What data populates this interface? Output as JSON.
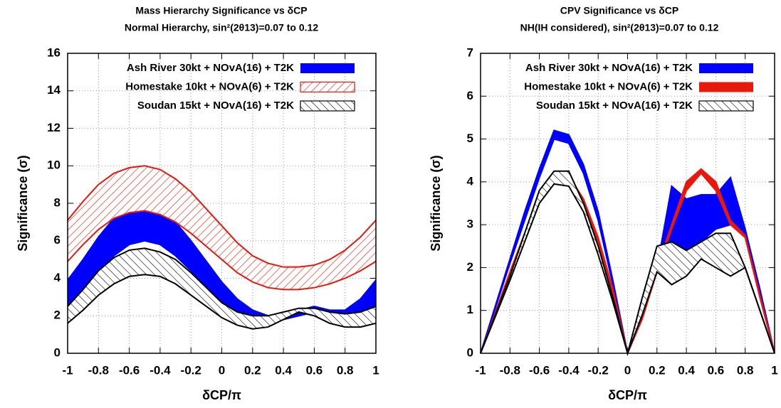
{
  "chart_data": [
    {
      "type": "band",
      "title": "Mass Hierarchy Significance vs δCP",
      "subtitle": "Normal Hierarchy, sin²(2θ13)=0.07 to 0.12",
      "x_label": "δCP/π",
      "y_label": "Significance (σ)",
      "xlim": [
        -1,
        1
      ],
      "xticks": [
        -1,
        -0.8,
        -0.6,
        -0.4,
        -0.2,
        0,
        0.2,
        0.4,
        0.6,
        0.8,
        1
      ],
      "ylim": [
        0,
        16
      ],
      "yticks": [
        0,
        2,
        4,
        6,
        8,
        10,
        12,
        14,
        16
      ],
      "grid": true,
      "legend": "top",
      "x": [
        -1,
        -0.9,
        -0.8,
        -0.7,
        -0.6,
        -0.5,
        -0.4,
        -0.3,
        -0.2,
        -0.1,
        0,
        0.1,
        0.2,
        0.3,
        0.4,
        0.5,
        0.6,
        0.7,
        0.8,
        0.9,
        1
      ],
      "series": [
        {
          "name": "Ash River 30kt + NOvA(16) + T2K",
          "color": "#0000ff",
          "pattern": "solid",
          "lower": [
            2.4,
            3.3,
            4.3,
            5.2,
            5.8,
            6.0,
            5.8,
            5.2,
            4.4,
            3.5,
            2.7,
            2.1,
            1.8,
            1.7,
            1.8,
            2.0,
            2.2,
            2.0,
            1.8,
            1.9,
            2.4
          ],
          "upper": [
            3.9,
            5.0,
            6.2,
            7.2,
            7.9,
            8.1,
            7.8,
            7.0,
            6.0,
            4.9,
            3.8,
            2.9,
            2.3,
            2.0,
            2.1,
            2.3,
            2.5,
            2.3,
            2.3,
            2.9,
            3.9
          ]
        },
        {
          "name": "Homestake 10kt + NOvA(6) + T2K",
          "color": "#e8180c",
          "pattern": "hatch-forward",
          "lower": [
            4.9,
            5.8,
            6.6,
            7.2,
            7.5,
            7.6,
            7.4,
            7.0,
            6.4,
            5.7,
            5.0,
            4.3,
            3.8,
            3.5,
            3.4,
            3.4,
            3.5,
            3.7,
            4.0,
            4.4,
            4.9
          ],
          "upper": [
            7.1,
            8.1,
            9.0,
            9.6,
            9.9,
            10.0,
            9.8,
            9.3,
            8.6,
            7.7,
            6.8,
            5.9,
            5.2,
            4.8,
            4.6,
            4.6,
            4.7,
            5.0,
            5.5,
            6.2,
            7.1
          ]
        },
        {
          "name": "Soudan 15kt + NOvA(16) + T2K",
          "color": "#000000",
          "pattern": "hatch-back",
          "lower": [
            1.6,
            2.3,
            3.1,
            3.7,
            4.1,
            4.2,
            4.1,
            3.7,
            3.1,
            2.5,
            1.9,
            1.5,
            1.3,
            1.4,
            1.8,
            2.2,
            2.0,
            1.6,
            1.4,
            1.4,
            1.6
          ],
          "upper": [
            2.5,
            3.4,
            4.4,
            5.1,
            5.5,
            5.6,
            5.4,
            5.0,
            4.3,
            3.5,
            2.7,
            2.2,
            2.0,
            2.0,
            2.2,
            2.4,
            2.4,
            2.2,
            2.1,
            2.2,
            2.5
          ]
        }
      ]
    },
    {
      "type": "band",
      "title": "CPV Significance vs δCP",
      "subtitle": "NH(IH considered), sin²(2θ13)=0.07 to 0.12",
      "x_label": "δCP/π",
      "y_label": "Significance (σ)",
      "xlim": [
        -1,
        1
      ],
      "xticks": [
        -1,
        -0.8,
        -0.6,
        -0.4,
        -0.2,
        0,
        0.2,
        0.4,
        0.6,
        0.8,
        1
      ],
      "ylim": [
        0,
        7
      ],
      "yticks": [
        0,
        1,
        2,
        3,
        4,
        5,
        6,
        7
      ],
      "grid": true,
      "legend": "top",
      "x": [
        -1,
        -0.9,
        -0.8,
        -0.7,
        -0.6,
        -0.5,
        -0.4,
        -0.3,
        -0.2,
        -0.1,
        0,
        0.1,
        0.2,
        0.3,
        0.4,
        0.5,
        0.6,
        0.7,
        0.8,
        0.9,
        1
      ],
      "series": [
        {
          "name": "Ash River 30kt + NOvA(16) + T2K",
          "color": "#0000ff",
          "pattern": "solid",
          "lower": [
            0,
            1.05,
            2.1,
            3.1,
            4.1,
            5.0,
            4.9,
            4.2,
            3.1,
            1.6,
            0,
            0.9,
            1.9,
            2.6,
            2.1,
            2.6,
            2.9,
            3.0,
            2.8,
            1.4,
            0
          ],
          "upper": [
            0,
            1.1,
            2.2,
            3.3,
            4.3,
            5.2,
            5.1,
            4.4,
            3.3,
            1.7,
            0,
            0.95,
            2.0,
            3.9,
            3.6,
            3.7,
            3.7,
            4.1,
            2.9,
            1.5,
            0
          ]
        },
        {
          "name": "Homestake 10kt + NOvA(6) + T2K",
          "color": "#e8180c",
          "pattern": "solid",
          "lower": [
            0,
            0.9,
            1.8,
            2.7,
            3.5,
            4.0,
            4.0,
            3.5,
            2.6,
            1.4,
            0,
            0.8,
            1.9,
            2.9,
            3.8,
            4.2,
            3.8,
            3.0,
            2.7,
            1.3,
            0
          ],
          "upper": [
            0,
            0.95,
            1.9,
            2.8,
            3.6,
            4.1,
            4.15,
            3.6,
            2.7,
            1.5,
            0,
            0.85,
            2.0,
            3.0,
            4.0,
            4.3,
            4.0,
            3.1,
            2.75,
            1.35,
            0
          ]
        },
        {
          "name": "Soudan 15kt + NOvA(16) + T2K",
          "color": "#000000",
          "pattern": "hatch-back",
          "lower": [
            0,
            0.85,
            1.7,
            2.6,
            3.5,
            3.95,
            3.9,
            3.3,
            2.3,
            1.2,
            0,
            0.9,
            1.9,
            1.6,
            1.8,
            2.2,
            2.0,
            1.8,
            2.0,
            1.0,
            0
          ],
          "upper": [
            0,
            0.9,
            1.8,
            2.8,
            3.8,
            4.25,
            4.25,
            3.5,
            2.5,
            1.3,
            0,
            1.3,
            2.5,
            2.6,
            2.4,
            2.6,
            2.8,
            2.8,
            2.0,
            1.0,
            0
          ]
        }
      ]
    }
  ]
}
